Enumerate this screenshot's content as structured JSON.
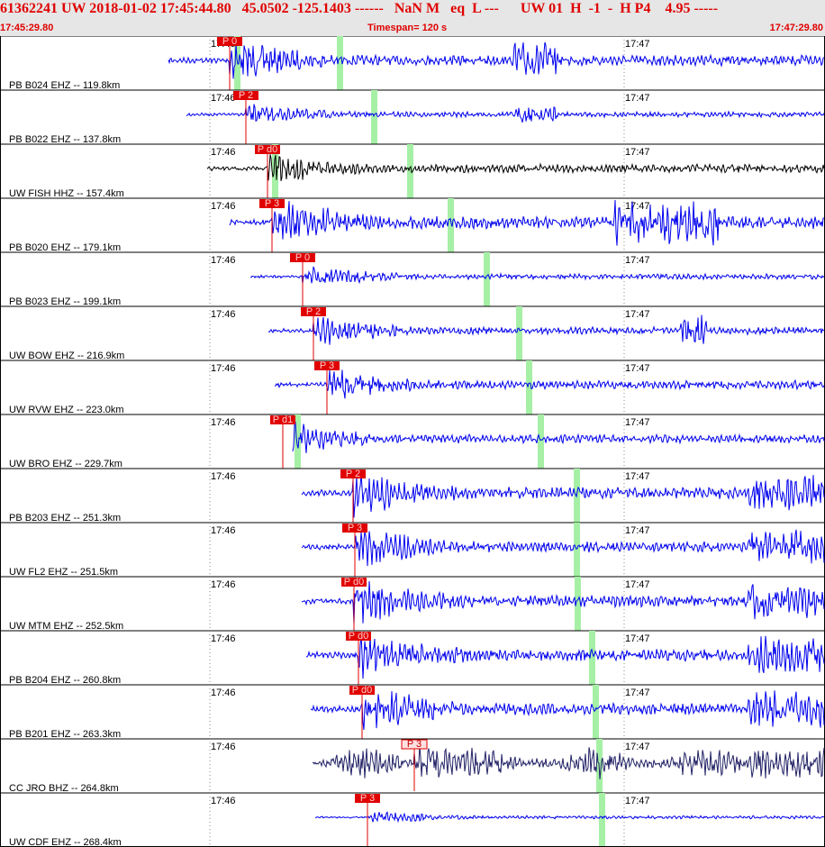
{
  "header": {
    "title": "61362241 UW 2018-01-02 17:45:44.80   45.0502 -125.1403 ------   NaN M   eq  L ---      UW 01  H  -1  -  H P4    4.95 -----",
    "start_time": "17:45:29.80",
    "timespan": "Timespan= 120 s",
    "end_time": "17:47:29.80"
  },
  "time_labels": [
    "17:46",
    "17:47"
  ],
  "traces": [
    {
      "label": "PB B024 EHZ -- 119.8km",
      "pick": "P 0"
    },
    {
      "label": "PB B022 EHZ -- 137.8km",
      "pick": "P 2"
    },
    {
      "label": "UW FISH HHZ -- 157.4km",
      "pick": "P d0"
    },
    {
      "label": "PB B020 EHZ -- 179.1km",
      "pick": "P 3"
    },
    {
      "label": "PB B023 EHZ -- 199.1km",
      "pick": "P 0"
    },
    {
      "label": "UW BOW EHZ -- 216.9km",
      "pick": "P 2"
    },
    {
      "label": "UW RVW EHZ -- 223.0km",
      "pick": "P 3"
    },
    {
      "label": "UW BRO EHZ -- 229.7km",
      "pick": "P d1"
    },
    {
      "label": "PB B203 EHZ -- 251.3km",
      "pick": "P 2"
    },
    {
      "label": "UW FL2 EHZ -- 251.5km",
      "pick": "P 3"
    },
    {
      "label": "UW MTM EHZ -- 252.5km",
      "pick": "P d0"
    },
    {
      "label": "PB B204 EHZ -- 260.8km",
      "pick": "P d0"
    },
    {
      "label": "PB B201 EHZ -- 263.3km",
      "pick": "P d0"
    },
    {
      "label": "CC JRO BHZ -- 264.8km",
      "pick": "P 3"
    },
    {
      "label": "UW CDF EHZ -- 268.4km",
      "pick": "P 3"
    }
  ]
}
